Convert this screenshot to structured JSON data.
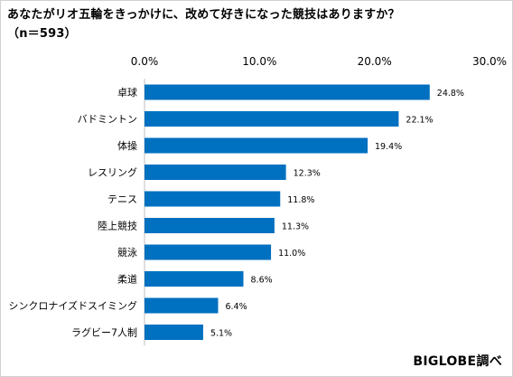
{
  "title_line1": "あなたがリオ五輪をきっかけに、改めて好きになった競技はありますか？",
  "title_line2": "（n＝593）",
  "source_credit": "BIGLOBE調べ",
  "chart_data": {
    "type": "bar",
    "orientation": "horizontal",
    "categories": [
      "卓球",
      "バドミントン",
      "体操",
      "レスリング",
      "テニス",
      "陸上競技",
      "競泳",
      "柔道",
      "シンクロナイズドスイミング",
      "ラグビー7人制"
    ],
    "values": [
      24.8,
      22.1,
      19.4,
      12.3,
      11.8,
      11.3,
      11.0,
      8.6,
      6.4,
      5.1
    ],
    "value_labels": [
      "24.8%",
      "22.1%",
      "19.4%",
      "12.3%",
      "11.8%",
      "11.3%",
      "11.0%",
      "8.6%",
      "6.4%",
      "5.1%"
    ],
    "xlim": [
      0,
      30
    ],
    "ticks": [
      0,
      10,
      20,
      30
    ],
    "tick_labels": [
      "0.0%",
      "10.0%",
      "20.0%",
      "30.0%"
    ],
    "axis_position": "top",
    "bar_color": "#0070C0",
    "grid": false,
    "legend": "none"
  }
}
